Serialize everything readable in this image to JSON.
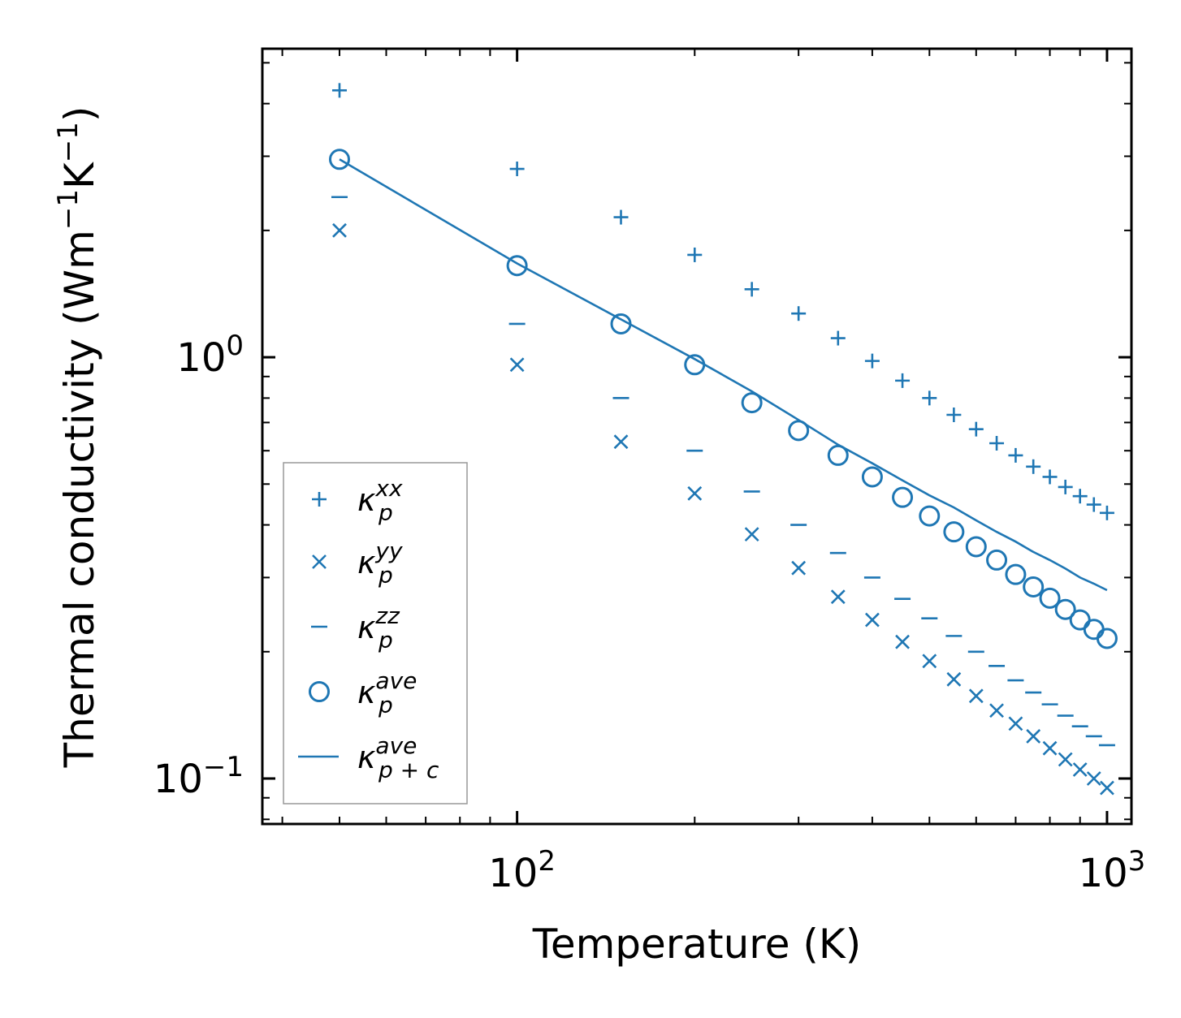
{
  "chart_data": {
    "type": "scatter",
    "xscale": "log",
    "yscale": "log",
    "xlim": [
      37,
      1100
    ],
    "ylim": [
      0.078,
      5.4
    ],
    "xlabel": "Temperature (K)",
    "ylabel_main": "Thermal conductivity (Wm",
    "ylabel_sup1": "−1",
    "ylabel_mid": "K",
    "ylabel_sup2": "−1",
    "ylabel_end": ")",
    "xticks": [
      {
        "value": 100,
        "base": "10",
        "exp": "2"
      },
      {
        "value": 1000,
        "base": "10",
        "exp": "3"
      }
    ],
    "yticks": [
      {
        "value": 1.0,
        "base": "10",
        "exp": "0"
      },
      {
        "value": 0.1,
        "base": "10",
        "exp": "−1"
      }
    ],
    "color": "#1f77b4",
    "x": [
      50,
      100,
      150,
      200,
      250,
      300,
      350,
      400,
      450,
      500,
      550,
      600,
      650,
      700,
      750,
      800,
      850,
      900,
      950,
      1000
    ],
    "series": [
      {
        "name": "kappa_p_xx",
        "marker": "plus",
        "label_base": "κ",
        "label_sub": "p",
        "label_sup": "xx",
        "values": [
          4.3,
          2.8,
          2.15,
          1.75,
          1.45,
          1.27,
          1.11,
          0.98,
          0.88,
          0.8,
          0.73,
          0.675,
          0.625,
          0.585,
          0.55,
          0.52,
          0.492,
          0.468,
          0.447,
          0.427
        ]
      },
      {
        "name": "kappa_p_yy",
        "marker": "x",
        "label_base": "κ",
        "label_sub": "p",
        "label_sup": "yy",
        "values": [
          2.0,
          0.96,
          0.63,
          0.475,
          0.38,
          0.316,
          0.27,
          0.238,
          0.211,
          0.19,
          0.172,
          0.157,
          0.145,
          0.135,
          0.126,
          0.118,
          0.111,
          0.105,
          0.1,
          0.095
        ]
      },
      {
        "name": "kappa_p_zz",
        "marker": "minus",
        "label_base": "κ",
        "label_sub": "p",
        "label_sup": "zz",
        "values": [
          2.4,
          1.2,
          0.8,
          0.6,
          0.48,
          0.4,
          0.343,
          0.3,
          0.267,
          0.24,
          0.218,
          0.2,
          0.185,
          0.171,
          0.16,
          0.15,
          0.141,
          0.133,
          0.126,
          0.12
        ]
      },
      {
        "name": "kappa_p_ave",
        "marker": "circle",
        "label_base": "κ",
        "label_sub": "p",
        "label_sup": "ave",
        "values": [
          2.95,
          1.65,
          1.2,
          0.96,
          0.78,
          0.67,
          0.585,
          0.52,
          0.465,
          0.42,
          0.385,
          0.355,
          0.33,
          0.305,
          0.285,
          0.268,
          0.252,
          0.238,
          0.226,
          0.215
        ]
      },
      {
        "name": "kappa_pc_ave",
        "marker": "line",
        "label_base": "κ",
        "label_sub": "p + c",
        "label_sup": "ave",
        "values": [
          2.95,
          1.67,
          1.23,
          0.99,
          0.83,
          0.71,
          0.62,
          0.56,
          0.51,
          0.47,
          0.44,
          0.41,
          0.385,
          0.365,
          0.345,
          0.33,
          0.315,
          0.3,
          0.29,
          0.28
        ]
      }
    ],
    "legend_position": "lower-left"
  }
}
